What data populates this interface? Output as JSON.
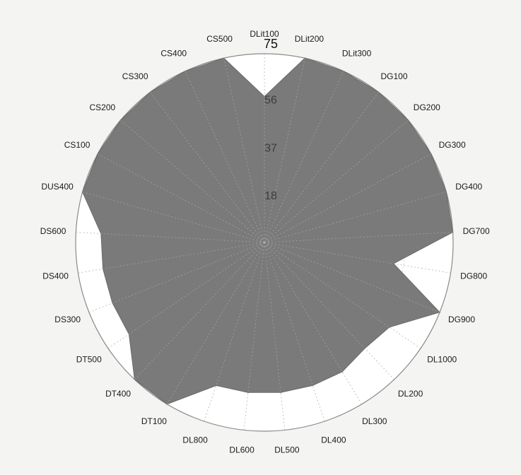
{
  "chart_data": {
    "type": "radar",
    "title": "",
    "categories": [
      "DLit100",
      "DLit200",
      "DLit300",
      "DG100",
      "DG200",
      "DG300",
      "DG400",
      "DG700",
      "DG800",
      "DG900",
      "DL1000",
      "DL200",
      "DL300",
      "DL400",
      "DL500",
      "DL600",
      "DL800",
      "DT100",
      "DT400",
      "DT500",
      "DS300",
      "DS400",
      "DS600",
      "DUS400",
      "CS100",
      "CS200",
      "CS300",
      "CS400",
      "CS500"
    ],
    "series": [
      {
        "values": [
          58,
          75,
          75,
          75,
          75,
          75,
          75,
          75,
          52,
          75,
          60,
          58,
          60,
          60,
          60,
          60,
          60,
          75,
          75,
          65,
          65,
          65,
          65,
          75,
          75,
          75,
          75,
          75,
          75
        ]
      }
    ],
    "radial_ticks": [
      "18",
      "37",
      "56",
      "75"
    ],
    "rlim": [
      0,
      75
    ],
    "fill_color": "#7a7a7a",
    "background_color": "#ffffff",
    "grid": true
  }
}
